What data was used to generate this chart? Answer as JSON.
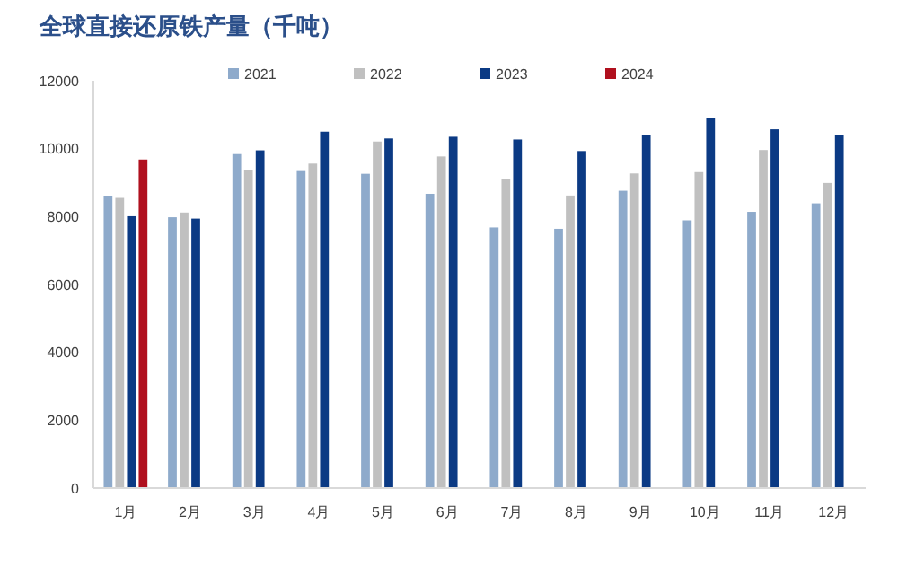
{
  "chart_data": {
    "type": "bar",
    "title": "全球直接还原铁产量（千吨）",
    "categories": [
      "1月",
      "2月",
      "3月",
      "4月",
      "5月",
      "6月",
      "7月",
      "8月",
      "9月",
      "10月",
      "11月",
      "12月"
    ],
    "series": [
      {
        "name": "2021",
        "color": "#8eaacb",
        "values": [
          8600,
          7980,
          9840,
          9340,
          9260,
          8670,
          7680,
          7640,
          8760,
          7890,
          8140,
          8390
        ]
      },
      {
        "name": "2022",
        "color": "#c0c0c0",
        "values": [
          8550,
          8120,
          9380,
          9560,
          10210,
          9770,
          9110,
          8620,
          9270,
          9310,
          9960,
          8990
        ]
      },
      {
        "name": "2023",
        "color": "#0b3a84",
        "values": [
          8010,
          7940,
          9950,
          10500,
          10300,
          10350,
          10270,
          9930,
          10390,
          10890,
          10570,
          10390
        ]
      },
      {
        "name": "2024",
        "color": "#b0101e",
        "values": [
          9680,
          null,
          null,
          null,
          null,
          null,
          null,
          null,
          null,
          null,
          null,
          null
        ]
      }
    ],
    "ylim": [
      0,
      12000
    ],
    "yticks": [
      0,
      2000,
      4000,
      6000,
      8000,
      10000,
      12000
    ],
    "grid": false,
    "legend": "top"
  }
}
